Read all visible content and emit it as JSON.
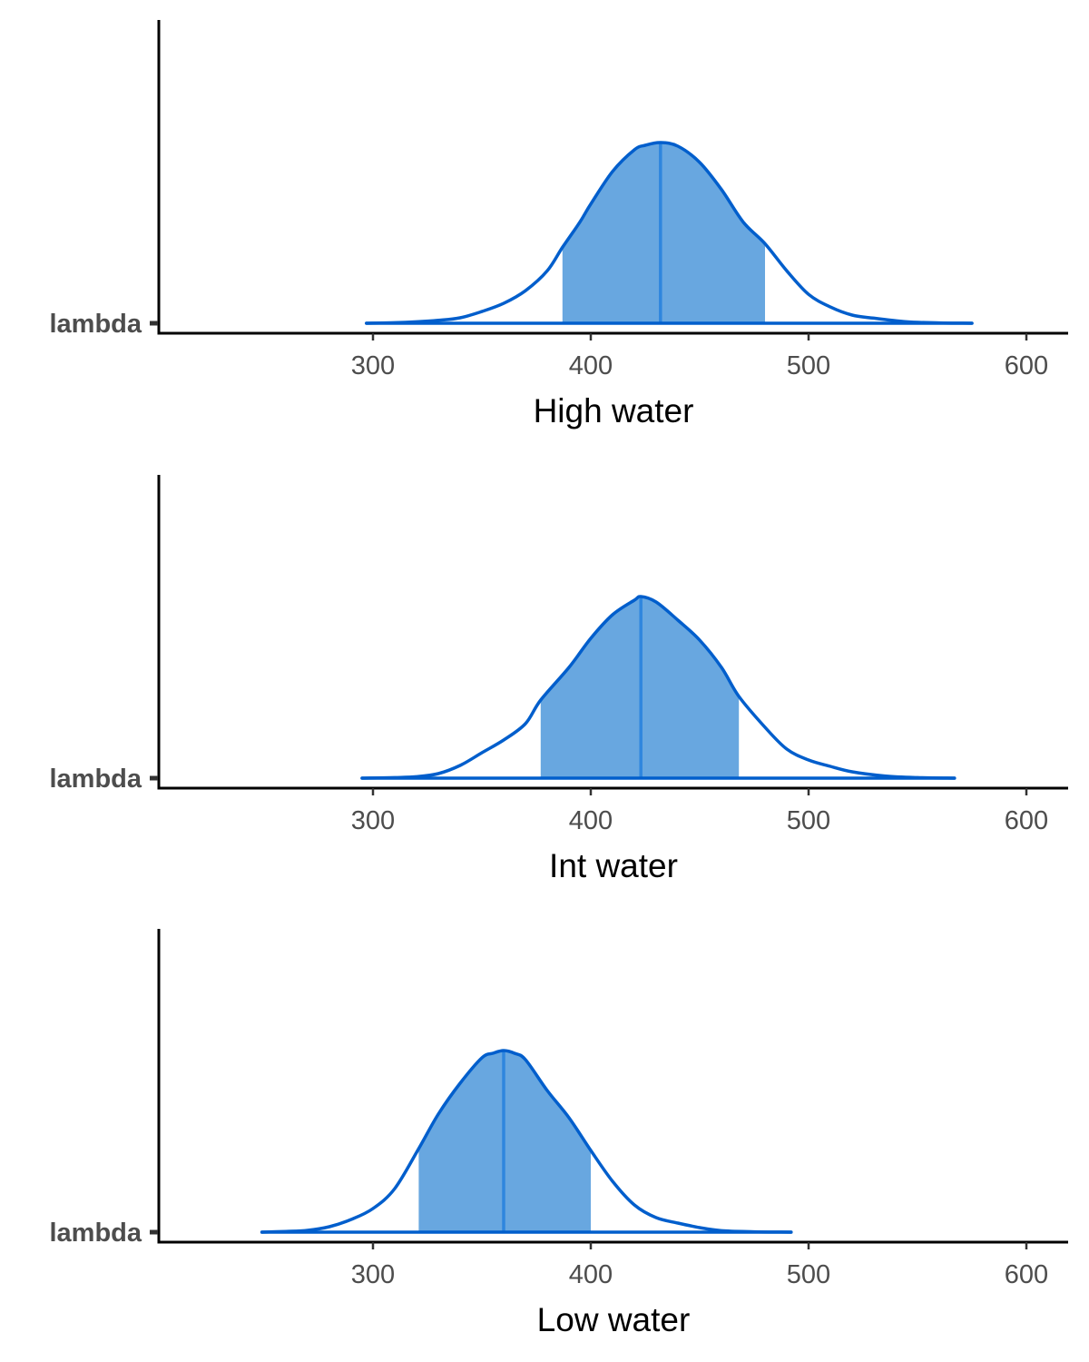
{
  "chart_data": [
    {
      "type": "area",
      "xlabel": "High water",
      "ytick_labels": [
        "lambda"
      ],
      "xticks": [
        300,
        400,
        500,
        600
      ],
      "xlim": [
        200,
        620
      ],
      "interval": [
        387,
        480
      ],
      "median": 432,
      "x": [
        297,
        310,
        320,
        330,
        340,
        350,
        360,
        370,
        380,
        387,
        395,
        400,
        410,
        420,
        425,
        432,
        440,
        450,
        460,
        470,
        480,
        490,
        500,
        510,
        520,
        530,
        545,
        560,
        575
      ],
      "y": [
        0.0,
        0.003,
        0.008,
        0.016,
        0.03,
        0.065,
        0.11,
        0.18,
        0.29,
        0.42,
        0.56,
        0.66,
        0.84,
        0.96,
        0.985,
        1.0,
        0.98,
        0.89,
        0.74,
        0.56,
        0.44,
        0.29,
        0.16,
        0.09,
        0.045,
        0.028,
        0.008,
        0.002,
        0.0
      ]
    },
    {
      "type": "area",
      "xlabel": "Int water",
      "ytick_labels": [
        "lambda"
      ],
      "xticks": [
        300,
        400,
        500,
        600
      ],
      "xlim": [
        200,
        620
      ],
      "interval": [
        377,
        468
      ],
      "median": 423,
      "x": [
        295,
        310,
        320,
        330,
        340,
        350,
        360,
        370,
        377,
        390,
        400,
        410,
        420,
        423,
        430,
        440,
        450,
        460,
        468,
        480,
        490,
        500,
        510,
        520,
        535,
        550,
        567
      ],
      "y": [
        0.0,
        0.003,
        0.008,
        0.025,
        0.07,
        0.14,
        0.21,
        0.3,
        0.43,
        0.61,
        0.77,
        0.9,
        0.98,
        1.0,
        0.97,
        0.87,
        0.76,
        0.61,
        0.45,
        0.28,
        0.16,
        0.1,
        0.065,
        0.035,
        0.012,
        0.003,
        0.0
      ]
    },
    {
      "type": "area",
      "xlabel": "Low water",
      "ytick_labels": [
        "lambda"
      ],
      "xticks": [
        300,
        400,
        500,
        600
      ],
      "xlim": [
        200,
        620
      ],
      "interval": [
        321,
        400
      ],
      "median": 360,
      "x": [
        249,
        260,
        270,
        280,
        290,
        300,
        310,
        321,
        330,
        340,
        350,
        355,
        360,
        365,
        370,
        380,
        390,
        400,
        410,
        420,
        430,
        440,
        450,
        460,
        475,
        492
      ],
      "y": [
        0.0,
        0.004,
        0.01,
        0.03,
        0.07,
        0.13,
        0.24,
        0.46,
        0.65,
        0.82,
        0.96,
        0.985,
        1.0,
        0.985,
        0.95,
        0.78,
        0.63,
        0.45,
        0.28,
        0.15,
        0.08,
        0.05,
        0.025,
        0.008,
        0.002,
        0.0
      ]
    }
  ],
  "colors": {
    "line": "#005ecc",
    "fill": "#68a7e0",
    "median": "#2f86de",
    "axis": "#000000",
    "tick_text": "#4d4d4d"
  }
}
